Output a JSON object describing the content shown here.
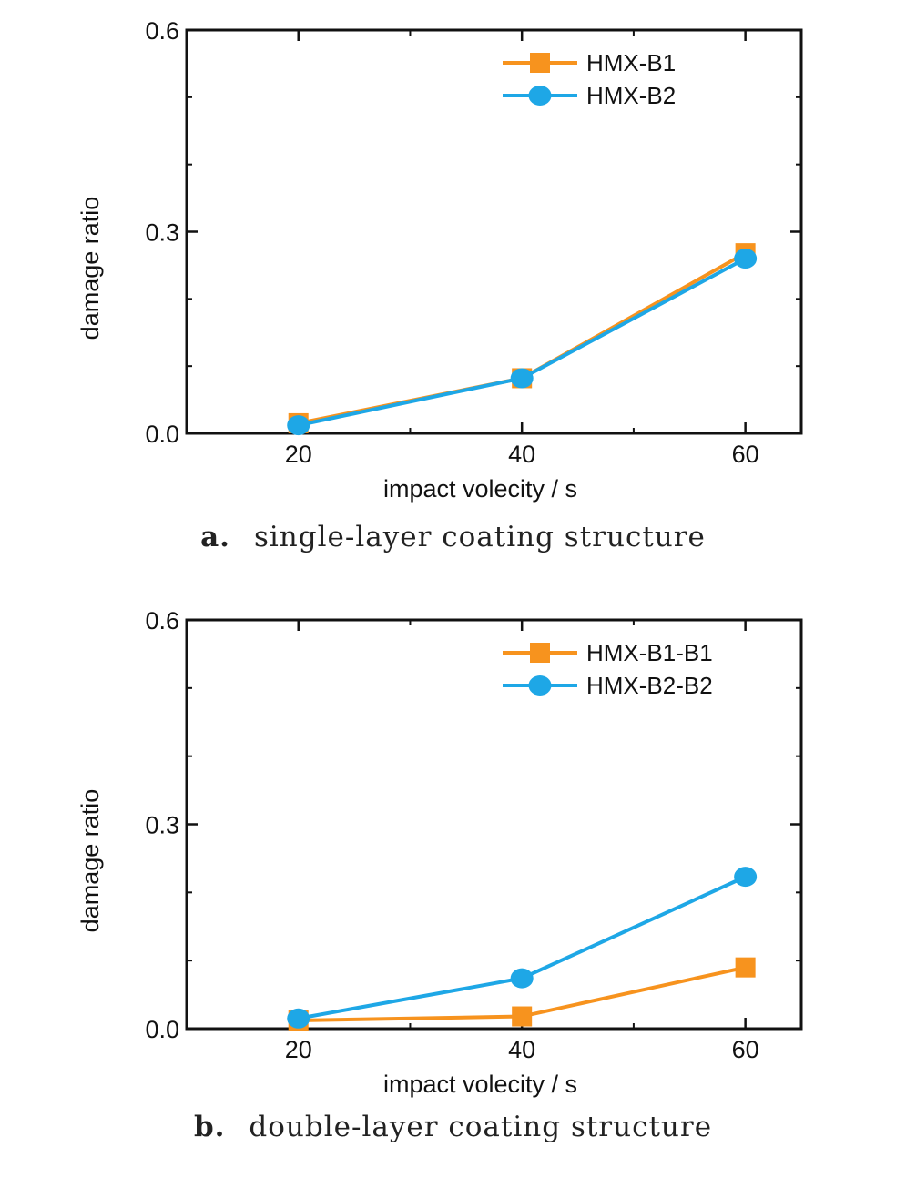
{
  "chart_data": [
    {
      "type": "line",
      "panel_label": "a.",
      "caption": "single-layer coating structure",
      "xlabel": "impact volecity / s",
      "ylabel": "damage ratio",
      "x": [
        20,
        40,
        60
      ],
      "xticks": [
        "20",
        "40",
        "60"
      ],
      "yticks": [
        "0.0",
        "0.3",
        "0.6"
      ],
      "xlim": [
        10,
        65
      ],
      "ylim": [
        0,
        0.6
      ],
      "legend_position": "top-right",
      "series": [
        {
          "name": "HMX-B1",
          "values": [
            0.015,
            0.082,
            0.268
          ],
          "color": "#f7931e",
          "marker": "square"
        },
        {
          "name": "HMX-B2",
          "values": [
            0.012,
            0.082,
            0.26
          ],
          "color": "#1ea7e6",
          "marker": "circle"
        }
      ]
    },
    {
      "type": "line",
      "panel_label": "b.",
      "caption": "double-layer coating structure",
      "xlabel": "impact volecity / s",
      "ylabel": "damage ratio",
      "x": [
        20,
        40,
        60
      ],
      "xticks": [
        "20",
        "40",
        "60"
      ],
      "yticks": [
        "0.0",
        "0.3",
        "0.6"
      ],
      "xlim": [
        10,
        65
      ],
      "ylim": [
        0,
        0.6
      ],
      "legend_position": "top-right",
      "series": [
        {
          "name": "HMX-B1-B1",
          "values": [
            0.012,
            0.018,
            0.09
          ],
          "color": "#f7931e",
          "marker": "square"
        },
        {
          "name": "HMX-B2-B2",
          "values": [
            0.015,
            0.074,
            0.223
          ],
          "color": "#1ea7e6",
          "marker": "circle"
        }
      ]
    }
  ]
}
